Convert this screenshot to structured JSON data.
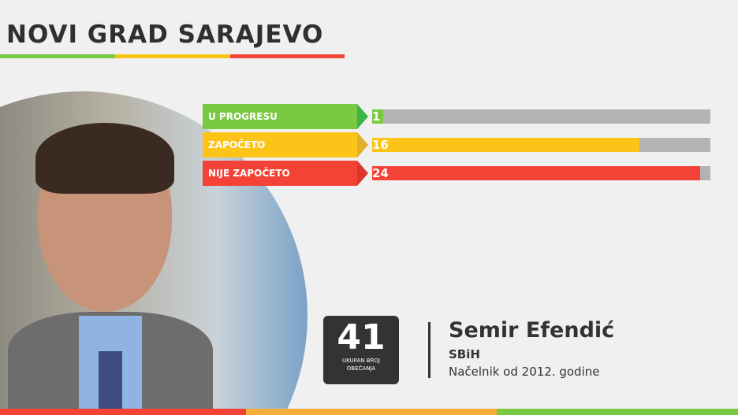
{
  "header": {
    "title": "NOVI GRAD SARAJEVO",
    "underline_colors": [
      "#7ac943",
      "#fcc419",
      "#f44336"
    ]
  },
  "status_bars": [
    {
      "label": "U PROGRESU",
      "value": "1",
      "fill_fraction": 0.033,
      "color": "#7ac943",
      "arrow_color": "#3ab54a"
    },
    {
      "label": "ZAPOČETO",
      "value": "16",
      "fill_fraction": 0.79,
      "color": "#fcc419",
      "arrow_color": "#e0b02a"
    },
    {
      "label": "NIJE ZAPOČETO",
      "value": "24",
      "fill_fraction": 0.97,
      "color": "#f44336",
      "arrow_color": "#d93630"
    }
  ],
  "track_color": "#b3b3b3",
  "total": {
    "number": "41",
    "caption_line1": "UKUPAN BROJ",
    "caption_line2": "OBEĆANJA"
  },
  "person": {
    "name": "Semir Efendić",
    "party": "SBiH",
    "role": "Načelnik od 2012. godine"
  },
  "footer_colors": [
    "#f44336",
    "#f9ae3b",
    "#7ac943"
  ]
}
